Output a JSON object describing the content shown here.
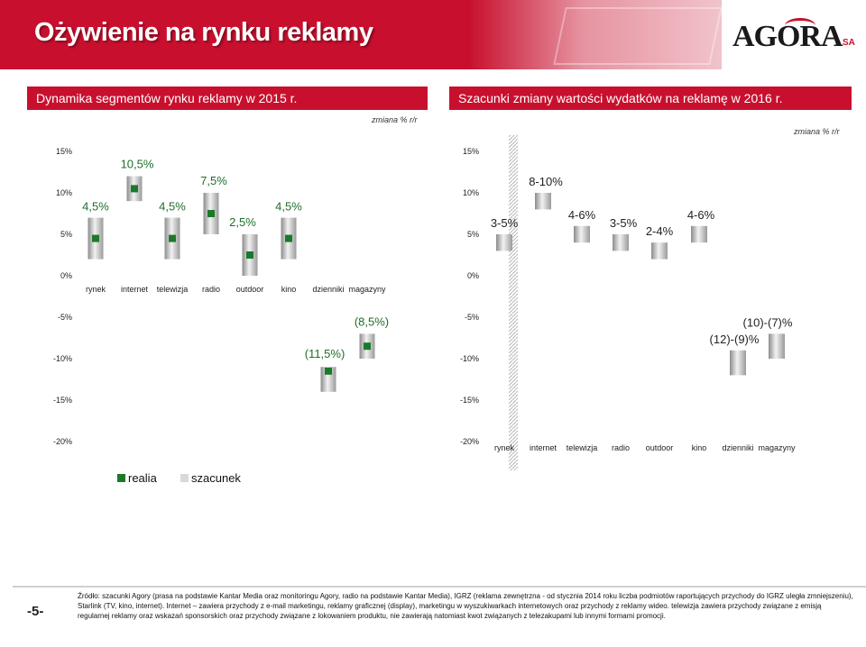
{
  "header": {
    "title": "Ożywienie na rynku reklamy",
    "logo_text": "AGORA",
    "logo_suffix": "SA"
  },
  "left_panel": {
    "title": "Dynamika segmentów rynku reklamy w 2015 r.",
    "unit": "zmiana  %  r/r"
  },
  "right_panel": {
    "title": "Szacunki zmiany wartości wydatków na reklamę w 2016 r.",
    "unit": "zmiana % r/r"
  },
  "legend": {
    "realia": "realia",
    "szacunek": "szacunek",
    "realia_color": "#1a7a2a",
    "szacunek_color": "#d9d9d9"
  },
  "colors": {
    "brand_red": "#c8102e",
    "realia_green": "#1a7a2a",
    "bar_gray": "#bdbdbd",
    "label_green": "#1f6e2a"
  },
  "chart_data": [
    {
      "type": "bar",
      "categories": [
        "rynek",
        "internet",
        "telewizja",
        "radio",
        "outdoor",
        "kino",
        "dzienniki",
        "magazyny"
      ],
      "ylim": [
        -20,
        15
      ],
      "yticks": [
        "15%",
        "10%",
        "5%",
        "0%",
        "-5%",
        "-10%",
        "-15%",
        "-20%"
      ],
      "ytick_values": [
        15,
        10,
        5,
        0,
        -5,
        -10,
        -15,
        -20
      ],
      "series": [
        {
          "name": "realia",
          "values": [
            4.5,
            10.5,
            4.5,
            7.5,
            2.5,
            4.5,
            -11.5,
            -8.5
          ]
        }
      ],
      "bar_low": [
        2,
        9,
        2,
        5,
        0,
        2,
        -14,
        -10
      ],
      "bar_high": [
        7,
        12,
        7,
        10,
        5,
        7,
        -11,
        -7
      ],
      "labels": [
        "4,5%",
        "10,5%",
        "4,5%",
        "7,5%",
        "2,5%",
        "4,5%",
        "(11,5%)",
        "(8,5%)"
      ]
    },
    {
      "type": "bar",
      "categories": [
        "rynek",
        "internet",
        "telewizja",
        "radio",
        "outdoor",
        "kino",
        "dzienniki",
        "magazyny"
      ],
      "ylim": [
        -20,
        15
      ],
      "yticks": [
        "15%",
        "10%",
        "5%",
        "0%",
        "-5%",
        "-10%",
        "-15%",
        "-20%"
      ],
      "ytick_values": [
        15,
        10,
        5,
        0,
        -5,
        -10,
        -15,
        -20
      ],
      "series": [
        {
          "name": "szacunek",
          "low": [
            3,
            8,
            4,
            3,
            2,
            4,
            -12,
            -10
          ],
          "high": [
            5,
            10,
            6,
            5,
            4,
            6,
            -9,
            -7
          ]
        }
      ],
      "labels": [
        "3-5%",
        "8-10%",
        "4-6%",
        "3-5%",
        "2-4%",
        "4-6%",
        "(12)-(9)%",
        "(10)-(7)%"
      ]
    }
  ],
  "footer": {
    "page_number": "-5-",
    "source_text": "Źródło: szacunki Agory (prasa na podstawie Kantar Media oraz monitoringu Agory, radio na podstawie Kantar Media), IGRZ (reklama zewnętrzna - od stycznia 2014 roku liczba podmiotów raportujących przychody do IGRZ uległa zmniejszeniu), Starlink (TV, kino, internet). Internet – zawiera przychody z e-mail marketingu, reklamy graficznej (display), marketingu w wyszukiwarkach internetowych oraz przychody z reklamy wideo. telewizja zawiera przychody związane z emisją regularnej reklamy oraz wskazań sponsorskich oraz przychody związane z lokowaniem produktu, nie zawierają natomiast kwot związanych z telezakupami lub innymi formami promocji."
  }
}
